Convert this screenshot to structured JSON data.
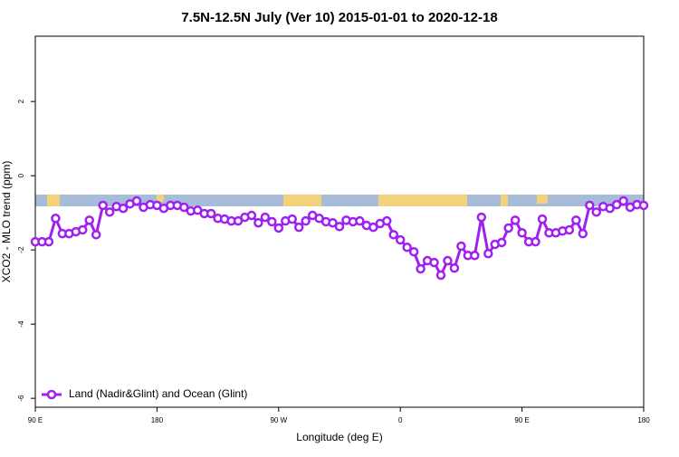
{
  "chart_data": {
    "type": "line",
    "title": "7.5N-12.5N July (Ver 10)   2015-01-01 to 2020-12-18",
    "xlabel": "Longitude (deg E)",
    "ylabel": "XCO2 - MLO trend (ppm)",
    "x": [
      90,
      95,
      100,
      105,
      110,
      115,
      120,
      125,
      130,
      135,
      140,
      145,
      150,
      155,
      160,
      165,
      170,
      175,
      180,
      185,
      190,
      195,
      200,
      205,
      210,
      215,
      220,
      225,
      230,
      235,
      240,
      245,
      250,
      255,
      260,
      265,
      270,
      275,
      280,
      285,
      290,
      295,
      300,
      305,
      310,
      315,
      320,
      325,
      330,
      335,
      340,
      345,
      350,
      355,
      360,
      365,
      370,
      375,
      380,
      385,
      390,
      395,
      400,
      405,
      410,
      415,
      420,
      425,
      430,
      435,
      440,
      445,
      450,
      455,
      460,
      465,
      470,
      475,
      480,
      485,
      490,
      495,
      500,
      505,
      510,
      515,
      520,
      525,
      530,
      535,
      540
    ],
    "series": [
      {
        "name": "Land (Nadir&Glint) and Ocean (Glint)",
        "color": "#a020f0",
        "values": [
          -1.78,
          -1.78,
          -1.78,
          -1.15,
          -1.56,
          -1.56,
          -1.51,
          -1.46,
          -1.2,
          -1.59,
          -0.8,
          -0.98,
          -0.83,
          -0.88,
          -0.76,
          -0.68,
          -0.85,
          -0.78,
          -0.8,
          -0.88,
          -0.8,
          -0.8,
          -0.85,
          -0.95,
          -0.93,
          -1.02,
          -1.02,
          -1.15,
          -1.17,
          -1.22,
          -1.22,
          -1.12,
          -1.07,
          -1.27,
          -1.12,
          -1.24,
          -1.41,
          -1.22,
          -1.17,
          -1.39,
          -1.22,
          -1.07,
          -1.15,
          -1.24,
          -1.27,
          -1.37,
          -1.2,
          -1.24,
          -1.22,
          -1.34,
          -1.39,
          -1.29,
          -1.22,
          -1.59,
          -1.73,
          -1.93,
          -2.05,
          -2.51,
          -2.29,
          -2.34,
          -2.68,
          -2.29,
          -2.49,
          -1.9,
          -2.15,
          -2.15,
          -1.12,
          -2.1,
          -1.85,
          -1.8,
          -1.41,
          -1.2,
          -1.54,
          -1.78,
          -1.78,
          -1.17,
          -1.54,
          -1.54,
          -1.49,
          -1.46,
          -1.2,
          -1.56,
          -0.8,
          -0.98,
          -0.83,
          -0.88,
          -0.78,
          -0.68,
          -0.85,
          -0.78,
          -0.8
        ]
      }
    ],
    "xlim": [
      90,
      540
    ],
    "xticks": [
      {
        "value": 90,
        "label": "90 E"
      },
      180,
      {
        "value": 270,
        "label": "90 W"
      },
      {
        "value": 360,
        "label": "0"
      },
      {
        "value": 450,
        "label": "90 E"
      },
      {
        "value": 540,
        "label": "180"
      }
    ],
    "ylim": [
      -6.24,
      3.76
    ],
    "yticks": [
      -6,
      -4,
      -2,
      0,
      2
    ],
    "legend": "bottom-left"
  }
}
